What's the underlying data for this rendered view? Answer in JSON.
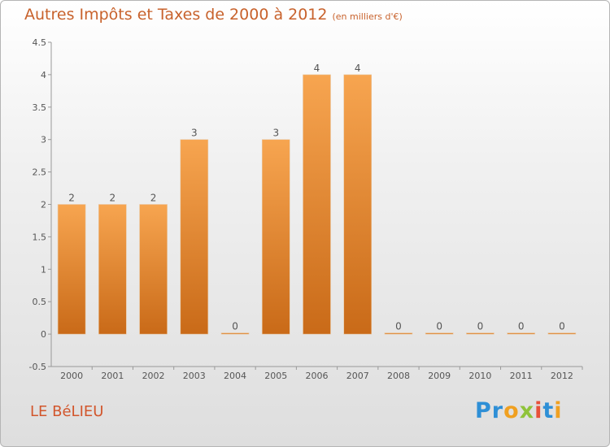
{
  "header": {
    "title": "Autres Impôts et Taxes de 2000 à 2012",
    "unit": "(en milliers d'€)"
  },
  "footer": {
    "location": "LE BéLIEU",
    "brand": "Proxiti"
  },
  "brand_letters": [
    {
      "ch": "P",
      "color": "#2e8fd6"
    },
    {
      "ch": "r",
      "color": "#2e8fd6"
    },
    {
      "ch": "o",
      "color": "#f0a020"
    },
    {
      "ch": "x",
      "color": "#8fc33a"
    },
    {
      "ch": "i",
      "color": "#e8503a"
    },
    {
      "ch": "t",
      "color": "#2e8fd6"
    },
    {
      "ch": "i",
      "color": "#f0a020"
    }
  ],
  "colors": {
    "bar_top": "#f7a550",
    "bar_bottom": "#c96a18",
    "title": "#c8622c",
    "location": "#d2562c"
  },
  "chart_data": {
    "type": "bar",
    "categories": [
      "2000",
      "2001",
      "2002",
      "2003",
      "2004",
      "2005",
      "2006",
      "2007",
      "2008",
      "2009",
      "2010",
      "2011",
      "2012"
    ],
    "values": [
      2,
      2,
      2,
      3,
      0,
      3,
      4,
      4,
      0,
      0,
      0,
      0,
      0
    ],
    "data_labels": [
      "2",
      "2",
      "2",
      "3",
      "0",
      "3",
      "4",
      "4",
      "0",
      "0",
      "0",
      "0",
      "0"
    ],
    "ylim": [
      -0.5,
      4.5
    ],
    "yticks": [
      -0.5,
      0,
      0.5,
      1,
      1.5,
      2,
      2.5,
      3,
      3.5,
      4,
      4.5
    ],
    "ytick_labels": [
      "-0.5",
      "0",
      "0.5",
      "1",
      "1.5",
      "2",
      "2.5",
      "3",
      "3.5",
      "4",
      "4.5"
    ],
    "grid": false,
    "legend": "none"
  }
}
